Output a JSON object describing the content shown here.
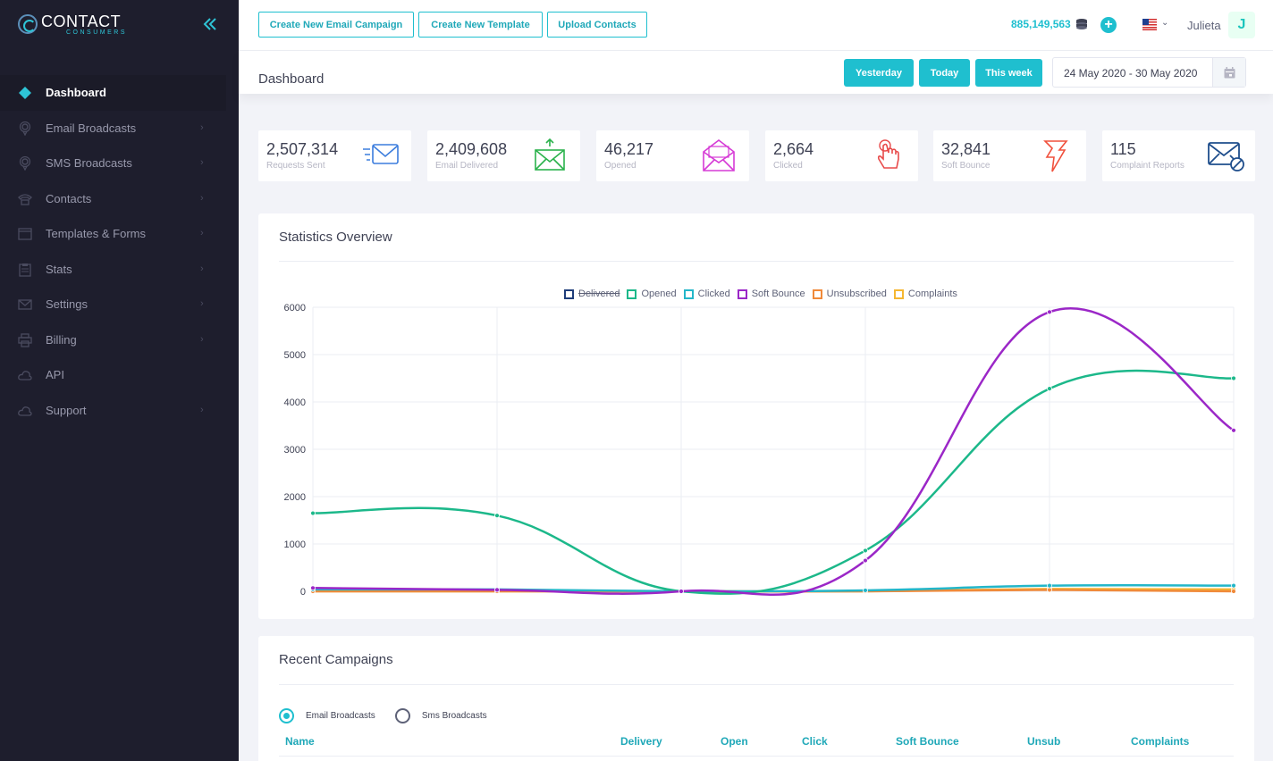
{
  "brand": {
    "name": "CONTACT",
    "sub": "CONSUMERS"
  },
  "sidebar": {
    "items": [
      {
        "label": "Dashboard",
        "icon": "diamond-icon",
        "active": true
      },
      {
        "label": "Email Broadcasts",
        "icon": "broadcast-icon"
      },
      {
        "label": "SMS Broadcasts",
        "icon": "broadcast-icon"
      },
      {
        "label": "Contacts",
        "icon": "phone-icon"
      },
      {
        "label": "Templates & Forms",
        "icon": "window-icon"
      },
      {
        "label": "Stats",
        "icon": "clipboard-icon"
      },
      {
        "label": "Settings",
        "icon": "envelope-icon"
      },
      {
        "label": "Billing",
        "icon": "printer-icon"
      },
      {
        "label": "API",
        "icon": "cloud-icon"
      },
      {
        "label": "Support",
        "icon": "cloud-icon"
      }
    ]
  },
  "topbar": {
    "buttons": [
      "Create New Email Campaign",
      "Create New Template",
      "Upload Contacts"
    ],
    "credits": "885,149,563",
    "user": {
      "name": "Julieta",
      "initial": "J"
    }
  },
  "subheader": {
    "title": "Dashboard",
    "filters": [
      "Yesterday",
      "Today",
      "This week"
    ],
    "daterange": "24 May 2020 - 30 May 2020"
  },
  "cards": [
    {
      "value": "2,507,314",
      "label": "Requests Sent",
      "icon": "send-mail-icon",
      "color": "#3b7ddd"
    },
    {
      "value": "2,409,608",
      "label": "Email Delivered",
      "icon": "inbox-upload-icon",
      "color": "#2bb24c"
    },
    {
      "value": "46,217",
      "label": "Opened",
      "icon": "open-envelope-icon",
      "color": "#d63bd6"
    },
    {
      "value": "2,664",
      "label": "Clicked",
      "icon": "pointer-hand-icon",
      "color": "#e84a4a"
    },
    {
      "value": "32,841",
      "label": "Soft Bounce",
      "icon": "bounce-arrow-icon",
      "color": "#f0503c"
    },
    {
      "value": "115",
      "label": "Complaint Reports",
      "icon": "blocked-mail-icon",
      "color": "#1f4e8c"
    }
  ],
  "stats": {
    "title": "Statistics Overview"
  },
  "chart_data": {
    "type": "line",
    "title": "",
    "xlabel": "",
    "ylabel": "",
    "ylim": [
      0,
      6000
    ],
    "yticks": [
      0,
      1000,
      2000,
      3000,
      4000,
      5000,
      6000
    ],
    "x": [
      1,
      2,
      3,
      4,
      5,
      6
    ],
    "grid": true,
    "legend_position": "top-center",
    "series": [
      {
        "name": "Delivered",
        "color": "#1f3d7a",
        "hidden": true,
        "values": [
          0,
          0,
          0,
          0,
          0,
          0
        ]
      },
      {
        "name": "Opened",
        "color": "#1cb88a",
        "values": [
          1650,
          1600,
          0,
          860,
          4280,
          4500
        ]
      },
      {
        "name": "Clicked",
        "color": "#23b6c9",
        "values": [
          40,
          40,
          0,
          20,
          120,
          120
        ]
      },
      {
        "name": "Soft Bounce",
        "color": "#9b27c7",
        "values": [
          70,
          30,
          0,
          650,
          5900,
          3400
        ]
      },
      {
        "name": "Unsubscribed",
        "color": "#f08a3a",
        "values": [
          0,
          0,
          0,
          0,
          30,
          0
        ]
      },
      {
        "name": "Complaints",
        "color": "#f5b731",
        "values": [
          0,
          0,
          0,
          0,
          50,
          40
        ]
      }
    ]
  },
  "campaigns": {
    "title": "Recent Campaigns",
    "tabs": [
      {
        "label": "Email Broadcasts",
        "checked": true
      },
      {
        "label": "Sms Broadcasts",
        "checked": false
      }
    ],
    "columns": [
      "Name",
      "Delivery",
      "Open",
      "Click",
      "Soft Bounce",
      "Unsub",
      "Complaints"
    ]
  }
}
